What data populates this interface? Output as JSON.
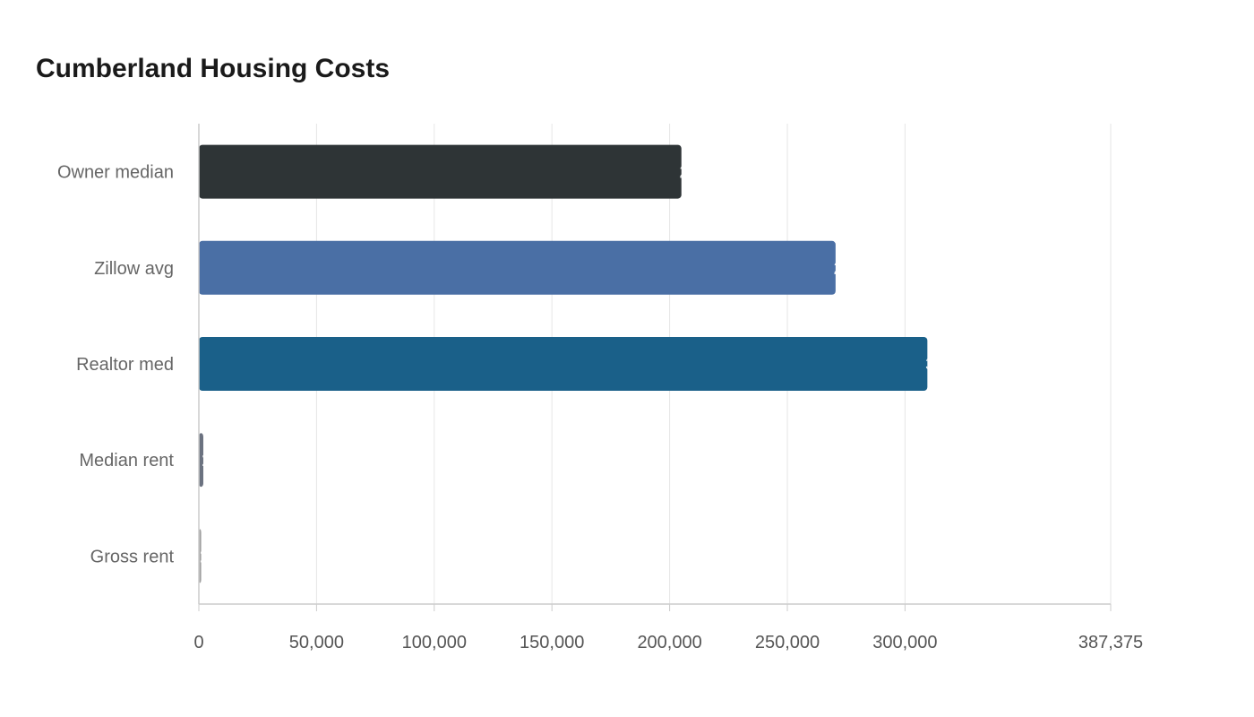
{
  "chart_data": {
    "type": "bar",
    "orientation": "horizontal",
    "title": "Cumberland Housing Costs",
    "xlabel": "",
    "ylabel": "",
    "categories": [
      "Owner median",
      "Zillow avg",
      "Realtor med",
      "Median rent",
      "Gross rent"
    ],
    "values": [
      205000,
      270500,
      309500,
      1900,
      1000
    ],
    "colors": [
      "#2e3436",
      "#4a6fa5",
      "#1a6089",
      "#6b7280",
      "#a0a0a0"
    ],
    "xlim": [
      0,
      387375
    ],
    "xticks": [
      0,
      50000,
      100000,
      150000,
      200000,
      250000,
      300000,
      387375
    ],
    "xtick_labels": [
      "0",
      "50,000",
      "100,000",
      "150,000",
      "200,000",
      "250,000",
      "300,000",
      "387,375"
    ],
    "grid": true,
    "legend": "none"
  }
}
